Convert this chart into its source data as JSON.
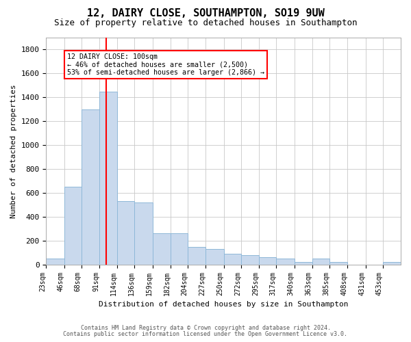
{
  "title": "12, DAIRY CLOSE, SOUTHAMPTON, SO19 9UW",
  "subtitle": "Size of property relative to detached houses in Southampton",
  "xlabel": "Distribution of detached houses by size in Southampton",
  "ylabel": "Number of detached properties",
  "footnote1": "Contains HM Land Registry data © Crown copyright and database right 2024.",
  "footnote2": "Contains public sector information licensed under the Open Government Licence v3.0.",
  "annotation_line1": "12 DAIRY CLOSE: 100sqm",
  "annotation_line2": "← 46% of detached houses are smaller (2,500)",
  "annotation_line3": "53% of semi-detached houses are larger (2,866) →",
  "bar_color": "#c9d9ed",
  "bar_edge_color": "#8fb8d8",
  "redline_x": 100,
  "bins": [
    23,
    46,
    68,
    91,
    114,
    136,
    159,
    182,
    204,
    227,
    250,
    272,
    295,
    317,
    340,
    363,
    385,
    408,
    431,
    453,
    476
  ],
  "values": [
    50,
    650,
    1300,
    1450,
    530,
    520,
    260,
    260,
    150,
    130,
    90,
    80,
    60,
    50,
    20,
    50,
    20,
    0,
    0,
    20
  ],
  "ylim": [
    0,
    1900
  ],
  "yticks": [
    0,
    200,
    400,
    600,
    800,
    1000,
    1200,
    1400,
    1600,
    1800
  ],
  "bg_color": "#ffffff",
  "grid_color": "#c8c8c8",
  "title_fontsize": 11,
  "subtitle_fontsize": 9,
  "tick_fontsize": 7,
  "label_fontsize": 8
}
